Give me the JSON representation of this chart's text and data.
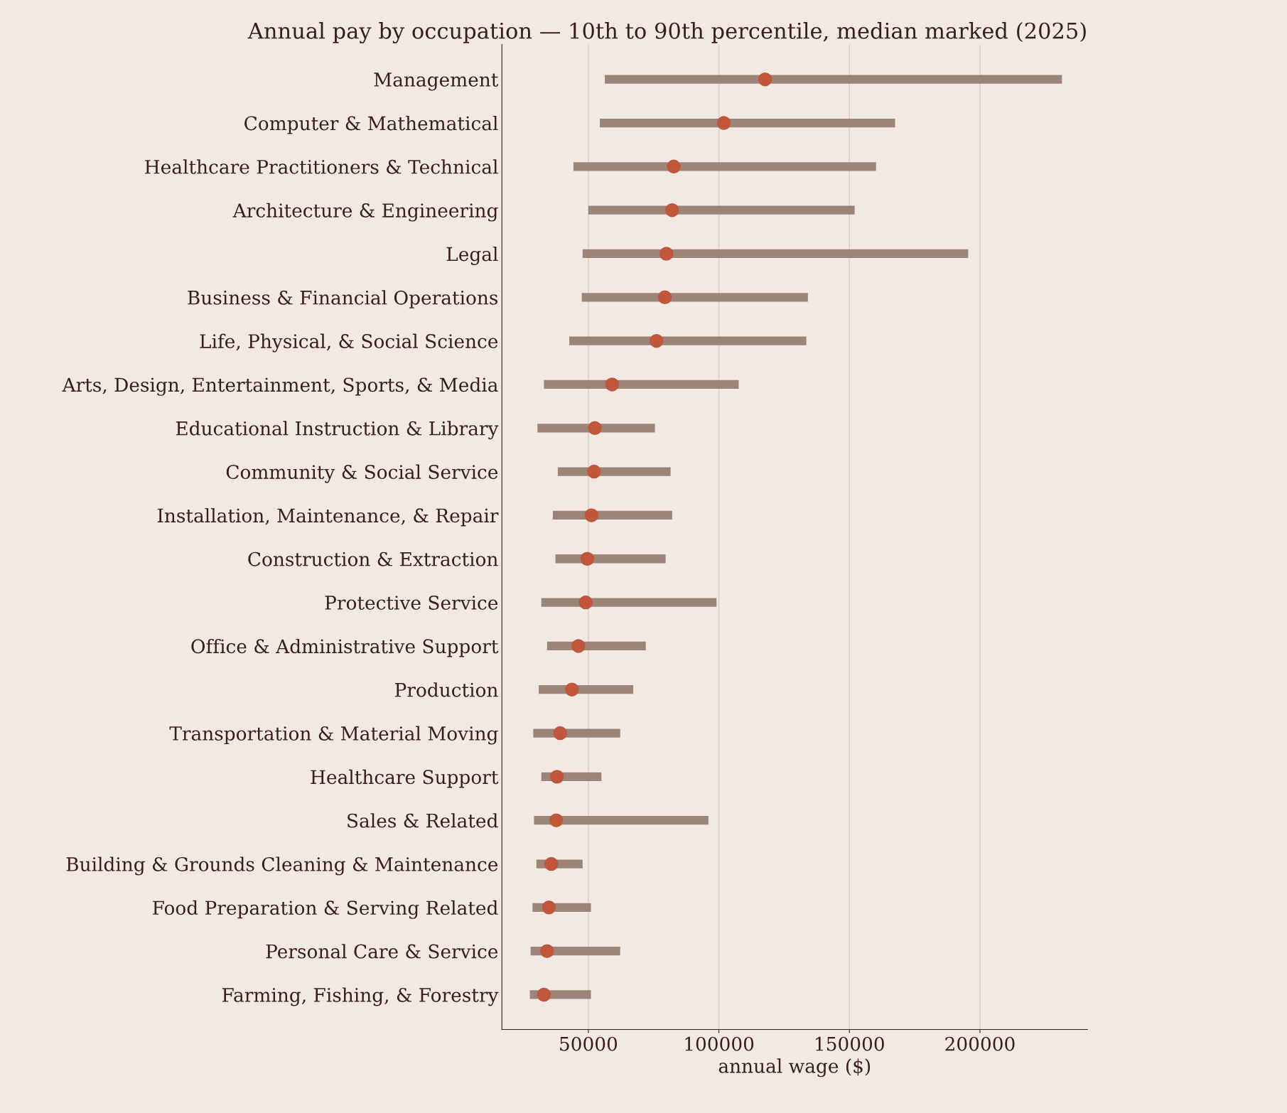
{
  "chart_data": {
    "type": "bar",
    "orientation": "horizontal",
    "title": "Annual pay by occupation — 10th to 90th percentile, median marked (2025)",
    "xlabel": "annual wage ($)",
    "categories": [
      "Management",
      "Computer & Mathematical",
      "Healthcare Practitioners & Technical",
      "Architecture & Engineering",
      "Legal",
      "Business & Financial Operations",
      "Life, Physical, & Social Science",
      "Arts, Design, Entertainment, Sports, & Media",
      "Educational Instruction & Library",
      "Community & Social Service",
      "Installation, Maintenance, & Repair",
      "Construction & Extraction",
      "Protective Service",
      "Office & Administrative Support",
      "Production",
      "Transportation & Material Moving",
      "Healthcare Support",
      "Sales & Related",
      "Building & Grounds Cleaning & Maintenance",
      "Food Preparation & Serving Related",
      "Personal Care & Service",
      "Farming, Fishing, & Forestry"
    ],
    "series": [
      {
        "color": "#9c8478",
        "base": [
          56300,
          54400,
          44300,
          50000,
          47800,
          47500,
          42700,
          33000,
          30500,
          38300,
          36400,
          37400,
          32000,
          34200,
          31000,
          28900,
          32000,
          29200,
          30100,
          28600,
          27900,
          27600
        ],
        "values": [
          175100,
          113100,
          115900,
          102000,
          147700,
          86600,
          90800,
          74600,
          45000,
          43200,
          45700,
          42200,
          67100,
          37800,
          36200,
          33300,
          23000,
          66800,
          17700,
          22400,
          34300,
          23400
        ]
      },
      {
        "type": "scatter",
        "marker": "circle",
        "color": "#c0573a",
        "values": [
          117700,
          101900,
          82700,
          82100,
          79900,
          79300,
          76100,
          59100,
          52500,
          52200,
          51200,
          49600,
          49000,
          46200,
          43700,
          39200,
          38000,
          37700,
          35800,
          34900,
          34200,
          33000
        ]
      }
    ],
    "xlim": [
      16900,
      241200
    ],
    "xticks": [
      50000,
      100000,
      150000,
      200000
    ],
    "grid": "x"
  }
}
